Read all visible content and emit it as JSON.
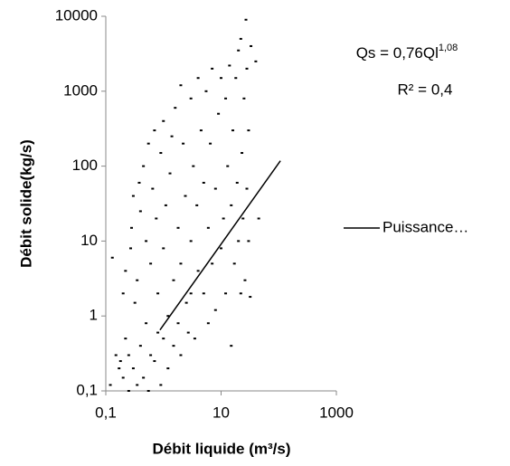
{
  "chart_data": {
    "type": "scatter",
    "xlabel": "Débit liquide (m³/s)",
    "ylabel": "Débit solide(kg/s)",
    "annotations": [
      {
        "text": "Qs = 0,76Ql",
        "sup": "1,08"
      },
      {
        "text": "R² = 0,4"
      }
    ],
    "xscale": "log",
    "yscale": "log",
    "xlim": [
      0.1,
      1000
    ],
    "ylim": [
      0.1,
      10000
    ],
    "xticks": [
      {
        "value": 0.1,
        "label": "0,1"
      },
      10,
      1000
    ],
    "yticks": [
      {
        "value": 0.1,
        "label": "0,1"
      },
      1,
      10,
      100,
      1000,
      10000
    ],
    "legend": "right",
    "series": [
      {
        "color": "#000000",
        "style": "points",
        "x": [
          0.12,
          0.13,
          0.15,
          0.17,
          0.18,
          0.2,
          0.2,
          0.22,
          0.22,
          0.25,
          0.25,
          0.27,
          0.28,
          0.3,
          0.3,
          0.32,
          0.35,
          0.35,
          0.38,
          0.4,
          0.4,
          0.45,
          0.45,
          0.5,
          0.5,
          0.55,
          0.55,
          0.6,
          0.6,
          0.65,
          0.7,
          0.7,
          0.75,
          0.8,
          0.8,
          0.9,
          0.9,
          1,
          1,
          1,
          1.1,
          1.2,
          1.2,
          1.3,
          1.4,
          1.5,
          1.5,
          1.6,
          1.8,
          1.8,
          2,
          2,
          2,
          2.2,
          2.4,
          2.5,
          2.7,
          3,
          3,
          3,
          3.3,
          3.5,
          3.8,
          4,
          4,
          4.5,
          5,
          5,
          5.5,
          6,
          6,
          6.5,
          7,
          7,
          8,
          8,
          9,
          10,
          10,
          11,
          12,
          12,
          13,
          14,
          15,
          15,
          16,
          17,
          18,
          19,
          20,
          20,
          22,
          22,
          23,
          24,
          25,
          26,
          27,
          28,
          28,
          30,
          30,
          32,
          33,
          40,
          45
        ],
        "values": [
          0.12,
          6,
          0.3,
          0.2,
          0.25,
          0.15,
          2,
          4,
          0.5,
          0.1,
          0.3,
          8,
          15,
          40,
          0.2,
          1.5,
          0.12,
          3,
          60,
          25,
          0.4,
          100,
          0.15,
          10,
          0.8,
          200,
          0.1,
          5,
          0.3,
          50,
          300,
          0.25,
          20,
          2,
          0.6,
          150,
          0.12,
          400,
          8,
          0.5,
          30,
          1,
          0.2,
          80,
          250,
          3,
          0.4,
          600,
          15,
          0.8,
          1200,
          5,
          0.3,
          200,
          40,
          1.5,
          0.6,
          800,
          10,
          2,
          100,
          0.5,
          30,
          1500,
          4,
          300,
          2,
          60,
          1000,
          15,
          0.8,
          200,
          2000,
          5,
          50,
          1.2,
          500,
          1500,
          8,
          20,
          2,
          800,
          100,
          2200,
          0.4,
          30,
          300,
          5,
          1500,
          60,
          10,
          3500,
          5000,
          2,
          150,
          20,
          800,
          3,
          9000,
          2000,
          50,
          10,
          300,
          1.8,
          4000,
          2500,
          20
        ]
      },
      {
        "name": "Puissance…",
        "color": "#000000",
        "style": "line",
        "x": [
          0.87,
          107
        ],
        "values": [
          0.65,
          118
        ]
      }
    ]
  }
}
